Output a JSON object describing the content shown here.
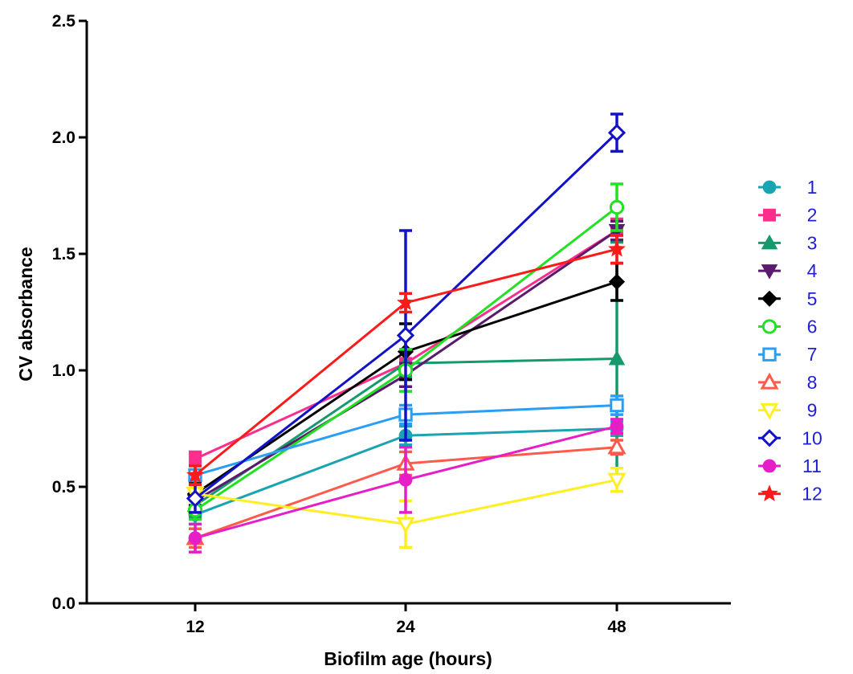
{
  "chart_data": {
    "type": "line",
    "title": "",
    "xlabel": "Biofilm age (hours)",
    "ylabel": "CV absorbance",
    "categories": [
      "12",
      "24",
      "48"
    ],
    "ylim": [
      0,
      2.5
    ],
    "yticks": [
      "0.0",
      "0.5",
      "1.0",
      "1.5",
      "2.0",
      "2.5"
    ],
    "grid": false,
    "legend_position": "right",
    "series": [
      {
        "name": "1",
        "color": "#1aa3b3",
        "marker": "circle",
        "values": [
          0.38,
          0.72,
          0.75
        ],
        "err": [
          0.04,
          0.04,
          0.03
        ]
      },
      {
        "name": "2",
        "color": "#ff2e8c",
        "marker": "square",
        "values": [
          0.62,
          1.03,
          1.6
        ],
        "err": [
          0.03,
          0.05,
          0.05
        ]
      },
      {
        "name": "3",
        "color": "#159a6b",
        "marker": "triangle",
        "values": [
          0.42,
          1.03,
          1.05
        ],
        "err": [
          0.05,
          0.06,
          0.5
        ]
      },
      {
        "name": "4",
        "color": "#5a1a6e",
        "marker": "triangle-down",
        "values": [
          0.44,
          0.98,
          1.6
        ],
        "err": [
          0.04,
          0.05,
          0.04
        ]
      },
      {
        "name": "5",
        "color": "#000000",
        "marker": "diamond",
        "values": [
          0.47,
          1.08,
          1.38
        ],
        "err": [
          0.05,
          0.12,
          0.08
        ]
      },
      {
        "name": "6",
        "color": "#22e022",
        "marker": "circle-open",
        "values": [
          0.4,
          1.0,
          1.7
        ],
        "err": [
          0.04,
          0.09,
          0.1
        ]
      },
      {
        "name": "7",
        "color": "#2a9df4",
        "marker": "square-open",
        "values": [
          0.55,
          0.81,
          0.85
        ],
        "err": [
          0.04,
          0.04,
          0.04
        ]
      },
      {
        "name": "8",
        "color": "#ff5a4a",
        "marker": "triangle-open",
        "values": [
          0.28,
          0.6,
          0.67
        ],
        "err": [
          0.04,
          0.05,
          0.03
        ]
      },
      {
        "name": "9",
        "color": "#ffee22",
        "marker": "triangle-down-open",
        "values": [
          0.47,
          0.34,
          0.53
        ],
        "err": [
          0.03,
          0.1,
          0.05
        ]
      },
      {
        "name": "10",
        "color": "#1212c8",
        "marker": "diamond-open",
        "values": [
          0.45,
          1.15,
          2.02
        ],
        "err": [
          0.06,
          0.45,
          0.08
        ]
      },
      {
        "name": "11",
        "color": "#e61ec8",
        "marker": "circle",
        "values": [
          0.28,
          0.53,
          0.76
        ],
        "err": [
          0.06,
          0.14,
          0.03
        ]
      },
      {
        "name": "12",
        "color": "#ff1a1a",
        "marker": "star",
        "values": [
          0.55,
          1.29,
          1.52
        ],
        "err": [
          0.04,
          0.04,
          0.06
        ]
      }
    ]
  }
}
